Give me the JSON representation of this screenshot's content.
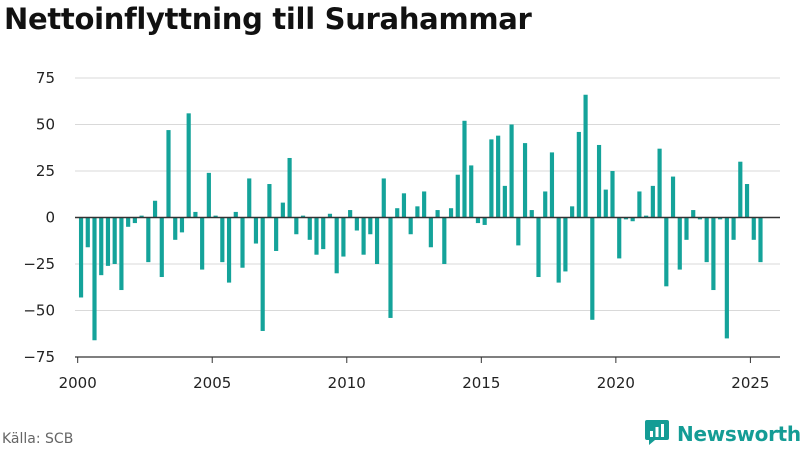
{
  "title": "Nettoinflyttning till Surahammar",
  "source": "Källa: SCB",
  "brand": {
    "name": "Newsworthy",
    "icon": "newsworthy-logo-icon"
  },
  "colors": {
    "bar": "#14a39a",
    "zero_line": "#333333",
    "grid": "#d9d9d9",
    "brand": "#149c95"
  },
  "chart_data": {
    "type": "bar",
    "title": "Nettoinflyttning till Surahammar",
    "xlabel": "",
    "ylabel": "",
    "ylim": [
      -75,
      75
    ],
    "xlim": [
      1999.9,
      2026.1
    ],
    "yticks": [
      75,
      50,
      25,
      0,
      -25,
      -50,
      -75
    ],
    "ytick_labels": [
      "75",
      "50",
      "25",
      "0",
      "−25",
      "−50",
      "−75"
    ],
    "xticks": [
      2000,
      2005,
      2010,
      2015,
      2020,
      2025
    ],
    "xtick_labels": [
      "2000",
      "2005",
      "2010",
      "2015",
      "2020",
      "2025"
    ],
    "grid": true,
    "frequency": "quarterly",
    "start": "2000-Q1",
    "values": [
      -43,
      -16,
      -66,
      -31,
      -26,
      -25,
      -39,
      -5,
      -3,
      1,
      -24,
      9,
      -32,
      47,
      -12,
      -8,
      56,
      3,
      -28,
      24,
      1,
      -24,
      -35,
      3,
      -27,
      21,
      -14,
      -61,
      18,
      -18,
      8,
      32,
      -9,
      1,
      -12,
      -20,
      -17,
      2,
      -30,
      -21,
      4,
      -7,
      -20,
      -9,
      -25,
      21,
      -54,
      5,
      13,
      -9,
      6,
      14,
      -16,
      4,
      -25,
      5,
      23,
      52,
      28,
      -3,
      -4,
      42,
      44,
      17,
      50,
      -15,
      40,
      4,
      -32,
      14,
      35,
      -35,
      -29,
      6,
      46,
      66,
      -55,
      39,
      15,
      25,
      -22,
      -1,
      -2,
      14,
      1,
      17,
      37,
      -37,
      22,
      -28,
      -12,
      4,
      -1,
      -24,
      -39,
      -1,
      -65,
      -12,
      30,
      18,
      -12,
      -24
    ]
  }
}
